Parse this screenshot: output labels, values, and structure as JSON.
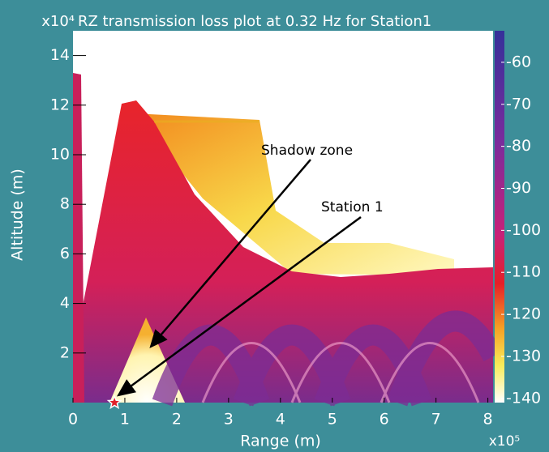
{
  "chart_data": {
    "type": "image",
    "title": "RZ transmission loss plot at 0.32 Hz for Station1",
    "x_label": "Range (m)",
    "y_label": "Altitude (m)",
    "x_multiplier": "x10⁵",
    "y_multiplier": "x10⁴",
    "xlim": [
      0,
      8.1
    ],
    "xticks": [
      0,
      1,
      2,
      3,
      4,
      5,
      6,
      7,
      8
    ],
    "ylim": [
      0,
      15
    ],
    "yticks": [
      2,
      4,
      6,
      8,
      10,
      12,
      14
    ],
    "clim": [
      -141,
      -52.5
    ],
    "cticks": [
      -60,
      -70,
      -80,
      -90,
      -100,
      -110,
      -120,
      -130,
      -140
    ],
    "annotations": [
      "Shadow zone",
      "Station 1"
    ],
    "station": {
      "x": 0.8,
      "y": 0,
      "color": "#e0202a"
    }
  }
}
